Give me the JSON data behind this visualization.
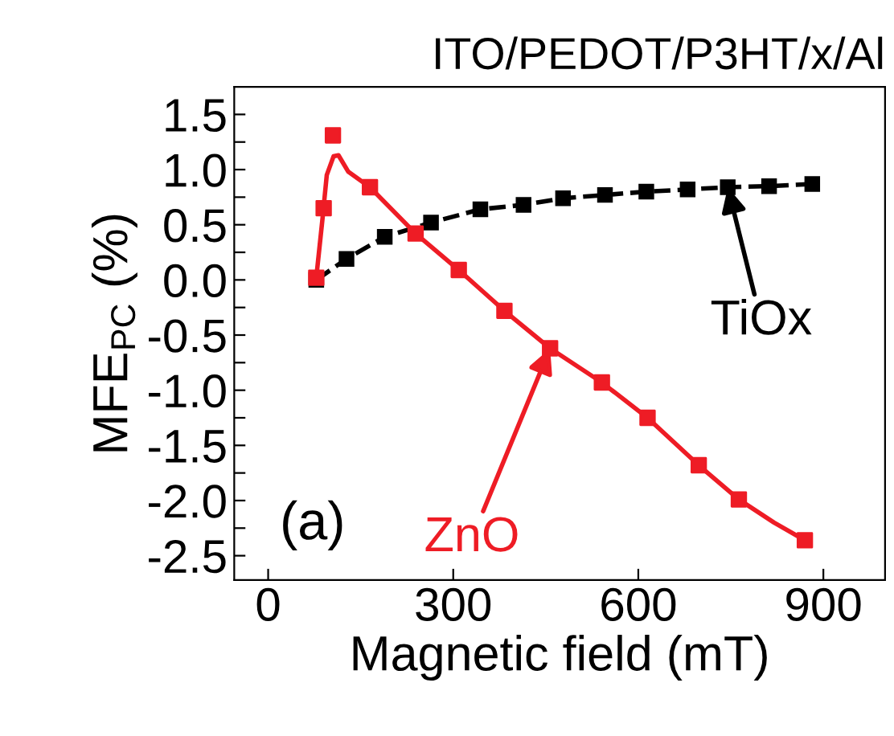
{
  "chart_data": {
    "type": "line",
    "title": "ITO/PEDOT/P3HT/x/Al",
    "xlabel": "Magnetic field (mT)",
    "ylabel": "MFE$_{PC}$ (%)",
    "series": [
      {
        "type": "line",
        "color": "#000000",
        "marker": "square",
        "line_style": "dashed",
        "x": [
          78,
          127,
          189,
          264,
          344,
          414,
          478,
          546,
          613,
          680,
          745,
          812,
          882
        ],
        "values": [
          0.0,
          0.19,
          0.39,
          0.52,
          0.64,
          0.68,
          0.74,
          0.77,
          0.8,
          0.82,
          0.84,
          0.85,
          0.87
        ]
      },
      {
        "type": "scatter",
        "color": "#ee1c25",
        "marker": "square",
        "x": [
          78,
          90,
          105,
          165,
          239,
          309,
          383,
          457,
          541,
          615,
          698,
          763,
          870
        ],
        "values": [
          0.02,
          0.65,
          1.31,
          0.84,
          0.42,
          0.09,
          -0.28,
          -0.62,
          -0.93,
          -1.25,
          -1.68,
          -1.99,
          -2.36
        ]
      },
      {
        "color": "#ee1c25",
        "line_style": "solid",
        "x": [
          78,
          88,
          95,
          106,
          114,
          130,
          165,
          239,
          309,
          383,
          457,
          541,
          615,
          698,
          763,
          820,
          870
        ],
        "values": [
          0.02,
          0.55,
          0.95,
          1.12,
          1.13,
          0.98,
          0.84,
          0.42,
          0.09,
          -0.28,
          -0.62,
          -0.93,
          -1.25,
          -1.68,
          -1.99,
          -2.2,
          -2.36
        ]
      }
    ],
    "annotations": [
      {
        "text": "TiOx",
        "x": 745,
        "y": 0.84
      },
      {
        "text": "ZnO",
        "x": 457,
        "y": -0.62
      },
      "(a)"
    ],
    "xlim": [
      -55,
      1000
    ],
    "ylim": [
      -2.72,
      1.75
    ],
    "xticks": [
      0,
      300,
      600,
      900
    ],
    "yticks": [
      {
        "value": -2.5,
        "label": "-2.5"
      },
      {
        "value": -2.25,
        "label": null
      },
      {
        "value": -2.0,
        "label": "-2.0"
      },
      {
        "value": -1.75,
        "label": null
      },
      {
        "value": -1.5,
        "label": "-1.5"
      },
      {
        "value": -1.25,
        "label": null
      },
      {
        "value": -1.0,
        "label": "-1.0"
      },
      {
        "value": -0.75,
        "label": null
      },
      {
        "value": -0.5,
        "label": "-0.5"
      },
      {
        "value": -0.25,
        "label": null
      },
      {
        "value": 0.0,
        "label": "0.0"
      },
      {
        "value": 0.25,
        "label": null
      },
      {
        "value": 0.5,
        "label": "0.5"
      },
      {
        "value": 0.75,
        "label": null
      },
      {
        "value": 1.0,
        "label": "1.0"
      },
      {
        "value": 1.25,
        "label": null
      },
      {
        "value": 1.5,
        "label": "1.5"
      }
    ],
    "grid": false,
    "legend": false
  }
}
